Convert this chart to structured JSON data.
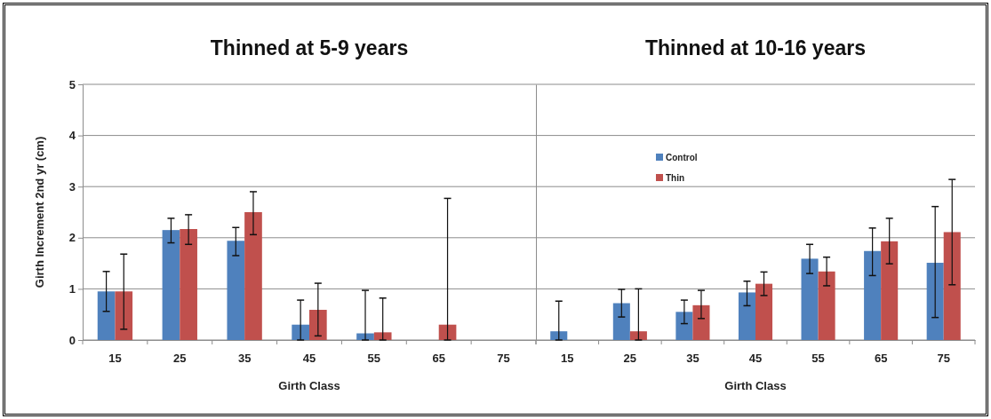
{
  "chart_data": [
    {
      "type": "bar",
      "title": "Thinned at 5-9 years",
      "xlabel": "Girth Class",
      "ylabel": "Girth Increment 2nd yr (cm)",
      "categories": [
        "15",
        "25",
        "35",
        "45",
        "55",
        "65",
        "75"
      ],
      "series": [
        {
          "color": "#4f81bd",
          "values": [
            0.95,
            2.15,
            1.94,
            0.3,
            0.13,
            null,
            null
          ],
          "errors": [
            [
              0.56,
              1.34
            ],
            [
              1.9,
              2.38
            ],
            [
              1.65,
              2.2
            ],
            [
              0,
              0.78
            ],
            [
              0,
              0.97
            ],
            null,
            null
          ]
        },
        {
          "color": "#c0504d",
          "values": [
            0.95,
            2.17,
            2.5,
            0.59,
            0.15,
            0.3,
            null
          ],
          "errors": [
            [
              0.21,
              1.68
            ],
            [
              1.87,
              2.45
            ],
            [
              2.06,
              2.9
            ],
            [
              0.08,
              1.11
            ],
            [
              0,
              0.82
            ],
            [
              0,
              2.77
            ],
            null
          ]
        }
      ],
      "ylim": [
        0,
        5
      ],
      "yticks": [
        0,
        1,
        2,
        3,
        4,
        5
      ],
      "grid": "y",
      "legend": false
    },
    {
      "type": "bar",
      "title": "Thinned at 10-16 years",
      "xlabel": "Girth Class",
      "categories": [
        "15",
        "25",
        "35",
        "45",
        "55",
        "65",
        "75"
      ],
      "series": [
        {
          "name": "Control",
          "color": "#4f81bd",
          "values": [
            0.17,
            0.72,
            0.55,
            0.93,
            1.59,
            1.74,
            1.51
          ],
          "errors": [
            [
              0,
              0.76
            ],
            [
              0.45,
              0.99
            ],
            [
              0.32,
              0.78
            ],
            [
              0.67,
              1.15
            ],
            [
              1.3,
              1.87
            ],
            [
              1.26,
              2.19
            ],
            [
              0.44,
              2.61
            ]
          ]
        },
        {
          "name": "Thin",
          "color": "#c0504d",
          "values": [
            null,
            0.17,
            0.68,
            1.1,
            1.34,
            1.93,
            2.11
          ],
          "errors": [
            null,
            [
              0,
              1.0
            ],
            [
              0.42,
              0.97
            ],
            [
              0.87,
              1.33
            ],
            [
              1.06,
              1.62
            ],
            [
              1.49,
              2.38
            ],
            [
              1.08,
              3.14
            ]
          ]
        }
      ],
      "ylim": [
        0,
        5
      ],
      "yticks": [
        0,
        1,
        2,
        3,
        4,
        5
      ],
      "grid": "y",
      "legend": "top left",
      "tick_labels": "x"
    }
  ]
}
